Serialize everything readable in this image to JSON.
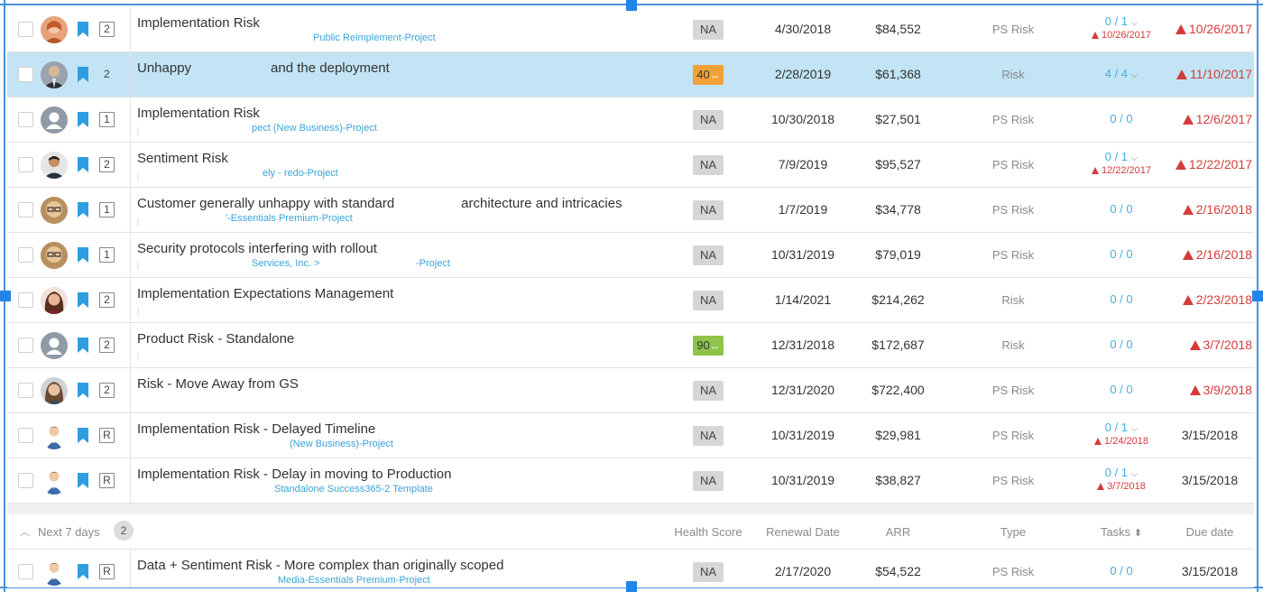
{
  "group": {
    "label": "Next 7 days",
    "count": "2",
    "columns": {
      "health": "Health Score",
      "renewal": "Renewal Date",
      "arr": "ARR",
      "type": "Type",
      "tasks": "Tasks",
      "due": "Due date"
    }
  },
  "rows": [
    {
      "priority": "2",
      "title": "Implementation Risk",
      "title2": "",
      "sub": "Public Reimplement-Project",
      "health": "NA",
      "renewal": "4/30/2018",
      "arr": "$84,552",
      "type": "PS Risk",
      "tasks": "0 / 1",
      "tasks_due": "10/26/2017",
      "due": "10/26/2017"
    },
    {
      "priority": "2",
      "title": "Unhappy",
      "title2": "and the deployment",
      "sub": "",
      "health": "40",
      "renewal": "2/28/2019",
      "arr": "$61,368",
      "type": "Risk",
      "tasks": "4 / 4",
      "tasks_due": "",
      "due": "11/10/2017"
    },
    {
      "priority": "1",
      "title": "Implementation Risk",
      "title2": "",
      "sub": "pect (New Business)-Project",
      "health": "NA",
      "renewal": "10/30/2018",
      "arr": "$27,501",
      "type": "PS Risk",
      "tasks": "0 / 0",
      "tasks_due": "",
      "due": "12/6/2017"
    },
    {
      "priority": "2",
      "title": "Sentiment Risk",
      "title2": "",
      "sub": "ely - redo-Project",
      "health": "NA",
      "renewal": "7/9/2019",
      "arr": "$95,527",
      "type": "PS Risk",
      "tasks": "0 / 1",
      "tasks_due": "12/22/2017",
      "due": "12/22/2017"
    },
    {
      "priority": "1",
      "title": "Customer generally unhappy with standard",
      "title2": "architecture and intricacies",
      "sub": "'-Essentials Premium-Project",
      "health": "NA",
      "renewal": "1/7/2019",
      "arr": "$34,778",
      "type": "PS Risk",
      "tasks": "0 / 0",
      "tasks_due": "",
      "due": "2/16/2018"
    },
    {
      "priority": "1",
      "title": "Security protocols interfering with rollout",
      "title2": "",
      "sub": "Services, Inc. >",
      "sub2": "-Project",
      "health": "NA",
      "renewal": "10/31/2019",
      "arr": "$79,019",
      "type": "PS Risk",
      "tasks": "0 / 0",
      "tasks_due": "",
      "due": "2/16/2018"
    },
    {
      "priority": "2",
      "title": "Implementation Expectations Management",
      "title2": "",
      "sub": "",
      "health": "NA",
      "renewal": "1/14/2021",
      "arr": "$214,262",
      "type": "Risk",
      "tasks": "0 / 0",
      "tasks_due": "",
      "due": "2/23/2018"
    },
    {
      "priority": "2",
      "title": "Product Risk - Standalone",
      "title2": "",
      "sub": "",
      "health": "90",
      "renewal": "12/31/2018",
      "arr": "$172,687",
      "type": "Risk",
      "tasks": "0 / 0",
      "tasks_due": "",
      "due": "3/7/2018"
    },
    {
      "priority": "2",
      "title": "Risk - Move Away from GS",
      "title2": "",
      "sub": "",
      "health": "NA",
      "renewal": "12/31/2020",
      "arr": "$722,400",
      "type": "PS Risk",
      "tasks": "0 / 0",
      "tasks_due": "",
      "due": "3/9/2018"
    },
    {
      "priority": "R",
      "title": "Implementation Risk - Delayed Timeline",
      "title2": "",
      "sub": "(New Business)-Project",
      "health": "NA",
      "renewal": "10/31/2019",
      "arr": "$29,981",
      "type": "PS Risk",
      "tasks": "0 / 1",
      "tasks_due": "1/24/2018",
      "due": "3/15/2018"
    },
    {
      "priority": "R",
      "title": "Implementation Risk - Delay in moving to Production",
      "title2": "",
      "sub": "Standalone Success365-2 Template",
      "health": "NA",
      "renewal": "10/31/2019",
      "arr": "$38,827",
      "type": "PS Risk",
      "tasks": "0 / 1",
      "tasks_due": "3/7/2018",
      "due": "3/15/2018"
    },
    {
      "priority": "R",
      "title": "Data + Sentiment Risk - More complex than originally scoped",
      "title2": "",
      "sub": "Media-Essentials Premium-Project",
      "health": "NA",
      "renewal": "2/17/2020",
      "arr": "$54,522",
      "type": "PS Risk",
      "tasks": "0 / 0",
      "tasks_due": "",
      "due": "3/15/2018"
    }
  ],
  "colors": {
    "accent": "#45aee0",
    "overdue": "#d43b3b",
    "selected": "#c2e4f4",
    "health_orange": "#f0a238",
    "health_green": "#8dc449"
  }
}
